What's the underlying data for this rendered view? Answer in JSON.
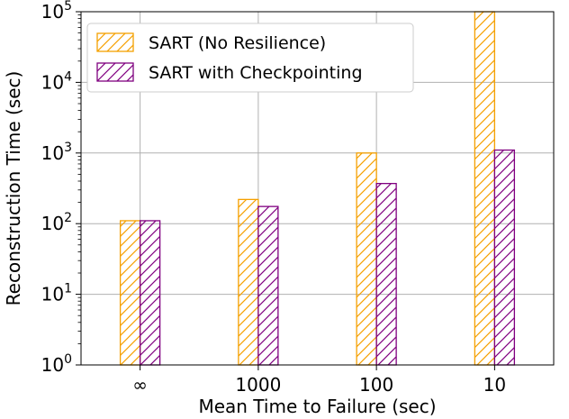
{
  "chart_data": {
    "type": "bar",
    "categories": [
      "∞",
      "1000",
      "100",
      "10"
    ],
    "series": [
      {
        "name": "SART (No Resilience)",
        "values": [
          110,
          220,
          1000,
          100000
        ],
        "color": "#f5a000",
        "hatch": "diagonal"
      },
      {
        "name": "SART with Checkpointing",
        "values": [
          110,
          175,
          370,
          1100
        ],
        "color": "#800080",
        "hatch": "diagonal"
      }
    ],
    "xlabel": "Mean Time to Failure (sec)",
    "ylabel": "Reconstruction Time (sec)",
    "yscale": "log",
    "ylim": [
      1,
      100000
    ],
    "yticks": [
      {
        "value": 1,
        "base": "10",
        "exp": "0"
      },
      {
        "value": 10,
        "base": "10",
        "exp": "1"
      },
      {
        "value": 100,
        "base": "10",
        "exp": "2"
      },
      {
        "value": 1000,
        "base": "10",
        "exp": "3"
      },
      {
        "value": 10000,
        "base": "10",
        "exp": "4"
      },
      {
        "value": 100000,
        "base": "10",
        "exp": "5"
      }
    ],
    "grid": true,
    "legend_position": "top-left"
  }
}
